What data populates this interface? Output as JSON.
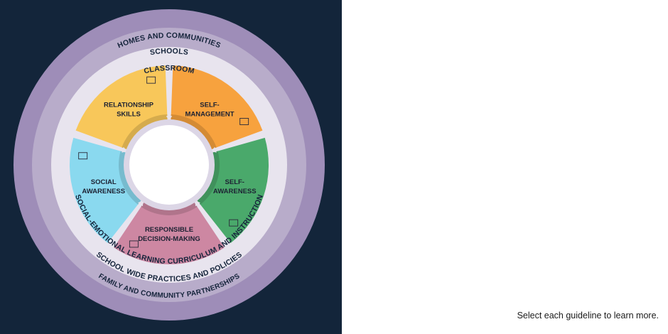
{
  "rings": {
    "homes_communities": "HOMES AND COMMUNITIES",
    "schools": "SCHOOLS",
    "classroom": "CLASSROOM",
    "curriculum": "SOCIAL-EMOTIONAL LEARNING CURRICULUM AND INSTRUCTION",
    "practices": "SCHOOL WIDE PRACTICES AND POLICIES",
    "partnerships": "FAMILY AND COMMUNITY PARTNERSHIPS"
  },
  "segments": [
    {
      "key": "self-management",
      "lines": [
        "SELF-",
        "MANAGEMENT"
      ],
      "color": "#f7a23e"
    },
    {
      "key": "self-awareness",
      "lines": [
        "SELF-",
        "AWARENESS"
      ],
      "color": "#4aa96b"
    },
    {
      "key": "responsible-decision-making",
      "lines": [
        "RESPONSIBLE",
        "DECISION-MAKING"
      ],
      "color": "#cd87a2"
    },
    {
      "key": "social-awareness",
      "lines": [
        "SOCIAL",
        "AWARENESS"
      ],
      "color": "#8ad9ef"
    },
    {
      "key": "relationship-skills",
      "lines": [
        "RELATIONSHIP",
        "SKILLS"
      ],
      "color": "#f8c75a"
    }
  ],
  "ring_colors": {
    "outer": "#9e8db8",
    "middle": "#b8acca",
    "inner": "#e8e4ee"
  },
  "background": "#13253a",
  "instruction": "Select each guideline to learn more."
}
